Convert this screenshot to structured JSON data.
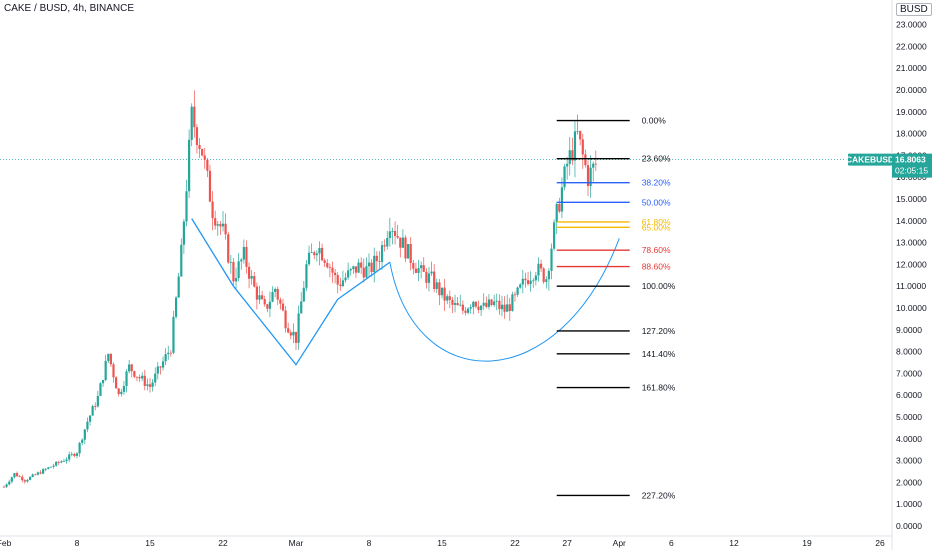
{
  "header": {
    "title": "CAKE / BUSD, 4h, BINANCE",
    "currency": "BUSD"
  },
  "price_badge": {
    "symbol": "CAKEBUSD",
    "price": "16.8063",
    "countdown": "02:05:15",
    "value": 16.8063,
    "color": "#26a69a"
  },
  "colors": {
    "up": "#26a69a",
    "down": "#ef5350",
    "pattern": "#2196f3",
    "fib_black": "#000000",
    "fib_blue": "#2962ff",
    "fib_orange": "#f5b800",
    "fib_red": "#e53935",
    "axis": "#131722"
  },
  "chart_data": {
    "type": "candlestick",
    "title": "CAKE / BUSD, 4h, BINANCE",
    "ylim": [
      0,
      23
    ],
    "y_ticks": [
      "0.0000",
      "1.0000",
      "2.0000",
      "3.0000",
      "4.0000",
      "5.0000",
      "6.0000",
      "7.0000",
      "8.0000",
      "9.0000",
      "10.0000",
      "11.0000",
      "12.0000",
      "13.0000",
      "14.0000",
      "15.0000",
      "16.0000",
      "17.0000",
      "18.0000",
      "19.0000",
      "20.0000",
      "21.0000",
      "22.0000",
      "23.0000"
    ],
    "x_ticks": [
      {
        "label": "Feb",
        "date": "2021-02-01"
      },
      {
        "label": "8",
        "date": "2021-02-08"
      },
      {
        "label": "15",
        "date": "2021-02-15"
      },
      {
        "label": "22",
        "date": "2021-02-22"
      },
      {
        "label": "Mar",
        "date": "2021-03-01"
      },
      {
        "label": "8",
        "date": "2021-03-08"
      },
      {
        "label": "15",
        "date": "2021-03-15"
      },
      {
        "label": "22",
        "date": "2021-03-22"
      },
      {
        "label": "27",
        "date": "2021-03-27"
      },
      {
        "label": "Apr",
        "date": "2021-04-01"
      },
      {
        "label": "6",
        "date": "2021-04-06"
      },
      {
        "label": "12",
        "date": "2021-04-12"
      },
      {
        "label": "19",
        "date": "2021-04-19"
      },
      {
        "label": "26",
        "date": "2021-04-26"
      }
    ],
    "price_path": [
      [
        "2021-02-01",
        1.8
      ],
      [
        "2021-02-02",
        2.4
      ],
      [
        "2021-02-03",
        2.1
      ],
      [
        "2021-02-05",
        2.6
      ],
      [
        "2021-02-07",
        3.1
      ],
      [
        "2021-02-08",
        3.4
      ],
      [
        "2021-02-09",
        4.8
      ],
      [
        "2021-02-10",
        5.9
      ],
      [
        "2021-02-11",
        7.9
      ],
      [
        "2021-02-12",
        6.0
      ],
      [
        "2021-02-13",
        7.3
      ],
      [
        "2021-02-14",
        6.8
      ],
      [
        "2021-02-15",
        6.4
      ],
      [
        "2021-02-16",
        7.3
      ],
      [
        "2021-02-17",
        8.2
      ],
      [
        "2021-02-18",
        12.5
      ],
      [
        "2021-02-19",
        18.8
      ],
      [
        "2021-02-20",
        17.2
      ],
      [
        "2021-02-21",
        14.5
      ],
      [
        "2021-02-22",
        13.5
      ],
      [
        "2021-02-23",
        11.4
      ],
      [
        "2021-02-24",
        12.4
      ],
      [
        "2021-02-25",
        10.9
      ],
      [
        "2021-02-26",
        9.9
      ],
      [
        "2021-02-27",
        10.9
      ],
      [
        "2021-02-28",
        9.4
      ],
      [
        "2021-03-01",
        8.6
      ],
      [
        "2021-03-02",
        11.9
      ],
      [
        "2021-03-03",
        12.9
      ],
      [
        "2021-03-04",
        12.2
      ],
      [
        "2021-03-05",
        11.1
      ],
      [
        "2021-03-06",
        11.5
      ],
      [
        "2021-03-07",
        11.9
      ],
      [
        "2021-03-08",
        11.7
      ],
      [
        "2021-03-09",
        12.4
      ],
      [
        "2021-03-10",
        14.0
      ],
      [
        "2021-03-11",
        13.1
      ],
      [
        "2021-03-12",
        12.3
      ],
      [
        "2021-03-13",
        11.6
      ],
      [
        "2021-03-14",
        11.3
      ],
      [
        "2021-03-15",
        10.6
      ],
      [
        "2021-03-16",
        10.1
      ],
      [
        "2021-03-17",
        9.9
      ],
      [
        "2021-03-18",
        10.4
      ],
      [
        "2021-03-19",
        10.0
      ],
      [
        "2021-03-20",
        10.2
      ],
      [
        "2021-03-21",
        9.9
      ],
      [
        "2021-03-22",
        10.4
      ],
      [
        "2021-03-23",
        11.3
      ],
      [
        "2021-03-24",
        11.8
      ],
      [
        "2021-03-25",
        11.4
      ],
      [
        "2021-03-26",
        14.3
      ],
      [
        "2021-03-27",
        16.6
      ],
      [
        "2021-03-28",
        17.9
      ],
      [
        "2021-03-29",
        16.0
      ],
      [
        "2021-03-30",
        16.8
      ]
    ],
    "fib_levels": [
      {
        "label": "0.00%",
        "price": 18.6,
        "color": "#000000"
      },
      {
        "label": "23.60%",
        "price": 16.85,
        "color": "#000000"
      },
      {
        "label": "38.20%",
        "price": 15.75,
        "color": "#2962ff"
      },
      {
        "label": "50.00%",
        "price": 14.85,
        "color": "#2962ff"
      },
      {
        "label": "61.80%",
        "price": 13.95,
        "color": "#f5b800"
      },
      {
        "label": "65.00%",
        "price": 13.7,
        "color": "#f5b800"
      },
      {
        "label": "78.60%",
        "price": 12.65,
        "color": "#e53935"
      },
      {
        "label": "88.60%",
        "price": 11.9,
        "color": "#e53935"
      },
      {
        "label": "100.00%",
        "price": 11.0,
        "color": "#000000"
      },
      {
        "label": "127.20%",
        "price": 8.95,
        "color": "#000000"
      },
      {
        "label": "141.40%",
        "price": 7.9,
        "color": "#000000"
      },
      {
        "label": "161.80%",
        "price": 6.35,
        "color": "#000000"
      },
      {
        "label": "227.20%",
        "price": 1.4,
        "color": "#000000"
      }
    ],
    "fib_range": {
      "start": "2021-03-26",
      "end": "2021-04-02"
    },
    "w_pattern": [
      [
        "2021-02-19",
        14.1
      ],
      [
        "2021-02-23",
        11.0
      ],
      [
        "2021-03-01",
        7.4
      ],
      [
        "2021-03-05",
        10.4
      ],
      [
        "2021-03-10",
        12.1
      ]
    ],
    "cup_curve": [
      [
        "2021-03-10",
        12.1
      ],
      [
        "2021-03-21",
        8.4
      ],
      [
        "2021-04-01",
        13.2
      ]
    ]
  }
}
